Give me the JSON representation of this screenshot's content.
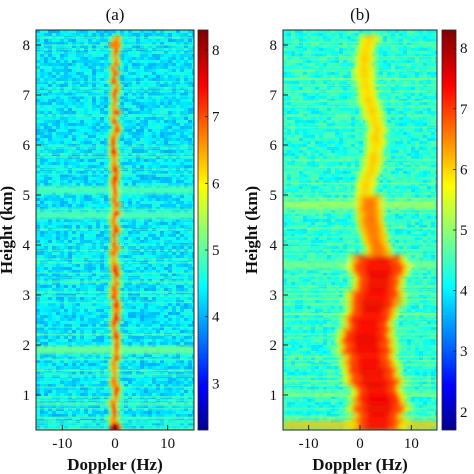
{
  "chart_data": [
    {
      "type": "heatmap",
      "panel_label": "(a)",
      "xlabel": "Doppler (Hz)",
      "ylabel": "Height (km)",
      "xlim": [
        -15,
        15
      ],
      "ylim": [
        0.3,
        8.3
      ],
      "x_ticks": [
        -10,
        0,
        10
      ],
      "y_ticks": [
        1,
        2,
        3,
        4,
        5,
        6,
        7,
        8
      ],
      "colorbar": {
        "ticks": [
          3,
          4,
          5,
          6,
          7,
          8
        ],
        "range": [
          2.3,
          8.3
        ]
      },
      "background_level": 4.4,
      "features": [
        {
          "kind": "narrow-column",
          "center_hz": 0,
          "height_from_km": 0.3,
          "height_to_km": 8.2,
          "peak_level": 7.2
        },
        {
          "kind": "bright-spot",
          "height_km": 0.35,
          "doppler_hz": 0,
          "level": 7.8
        },
        {
          "kind": "bright-spot",
          "height_km": 8.0,
          "doppler_hz": 0,
          "level": 6.8
        },
        {
          "kind": "horizontal-band",
          "height_km": 5.1,
          "level": 5.0
        },
        {
          "kind": "horizontal-band",
          "height_km": 4.6,
          "level": 5.0
        },
        {
          "kind": "horizontal-band",
          "height_km": 1.9,
          "level": 5.2
        }
      ]
    },
    {
      "type": "heatmap",
      "panel_label": "(b)",
      "xlabel": "Doppler (Hz)",
      "ylabel": "Height (km)",
      "xlim": [
        -15,
        15
      ],
      "ylim": [
        0.3,
        8.3
      ],
      "x_ticks": [
        -10,
        0,
        10
      ],
      "y_ticks": [
        1,
        2,
        3,
        4,
        5,
        6,
        7,
        8
      ],
      "colorbar": {
        "ticks": [
          2,
          3,
          4,
          5,
          6,
          7,
          8
        ],
        "range": [
          1.7,
          8.3
        ]
      },
      "background_level": 4.4,
      "features": [
        {
          "kind": "broad-column",
          "height_from_km": 0.3,
          "height_to_km": 3.8,
          "center_hz": 2.5,
          "width_hz": 9,
          "peak_level": 7.6
        },
        {
          "kind": "broad-column",
          "height_from_km": 3.8,
          "height_to_km": 5.0,
          "center_hz": 3,
          "width_hz": 4,
          "peak_level": 6.8
        },
        {
          "kind": "broad-column",
          "height_from_km": 5.0,
          "height_to_km": 8.2,
          "center_hz": 2,
          "width_hz": 3,
          "peak_level": 6.2
        },
        {
          "kind": "horizontal-band",
          "height_km": 4.8,
          "level": 5.3
        },
        {
          "kind": "horizontal-band",
          "height_km": 3.6,
          "level": 5.0
        },
        {
          "kind": "horizontal-band",
          "height_km": 0.4,
          "level": 6.2
        }
      ]
    }
  ]
}
